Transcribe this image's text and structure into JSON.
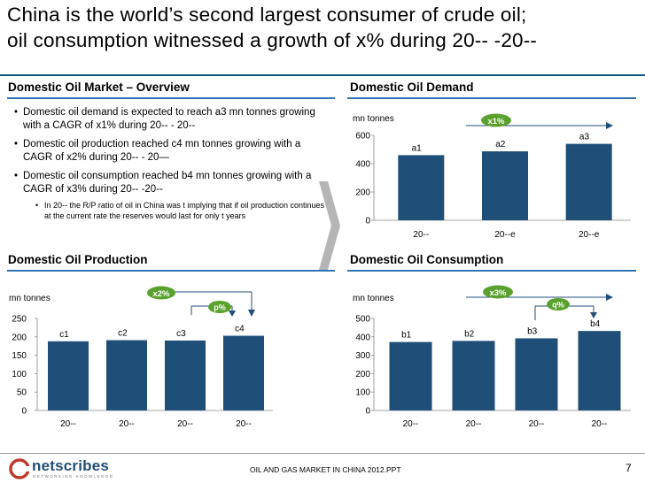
{
  "title": {
    "line1": "China is the world’s second largest consumer of crude oil;",
    "line2": "oil consumption witnessed a growth of x% during 20-- -20--"
  },
  "overview": {
    "heading": "Domestic Oil Market – Overview",
    "bullets": [
      "Domestic oil demand is expected to reach a3 mn tonnes growing with a CAGR of x1% during 20-- - 20--",
      "Domestic oil production reached c4 mn tonnes growing with a CAGR of x2% during 20-- - 20—",
      "Domestic oil consumption reached b4 mn tonnes growing with a CAGR of x3% during 20-- -20--"
    ],
    "sub_bullet": "In 20-- the R/P ratio of oil in China was t implying that if oil production continues at the current rate the reserves would last for only t years"
  },
  "demand": {
    "heading": "Domestic Oil Demand",
    "unit": "mn tonnes",
    "growth_badge": "x1%"
  },
  "production": {
    "heading": "Domestic Oil Production",
    "unit": "mn tonnes",
    "growth_badge": "x2%",
    "growth_badge2": "p%"
  },
  "consumption": {
    "heading": "Domestic Oil Consumption",
    "unit": "mn tonnes",
    "growth_badge": "x3%",
    "growth_badge2": "q%"
  },
  "footer": {
    "logo_name": "netscribes",
    "logo_tagline": "NETWORKING KNOWLEDGE",
    "document_title": "OIL AND GAS MARKET IN CHINA 2012.PPT",
    "page_number": "7"
  },
  "colors": {
    "bar": "#1f4e79",
    "badge": "#5aa02c",
    "heading_rule": "#2e75b6"
  },
  "chart_data": [
    {
      "id": "demand",
      "type": "bar",
      "categories": [
        "20--",
        "20--e",
        "20--e"
      ],
      "values": [
        460,
        487,
        540
      ],
      "labels": [
        "a1",
        "a2",
        "a3"
      ],
      "ylim": [
        0,
        600
      ],
      "yticks": [
        0,
        200,
        400,
        600
      ],
      "ylabel": "mn tonnes"
    },
    {
      "id": "production",
      "type": "bar",
      "categories": [
        "20--",
        "20--",
        "20--",
        "20--"
      ],
      "values": [
        188,
        191,
        190,
        203
      ],
      "labels": [
        "c1",
        "c2",
        "c3",
        "c4"
      ],
      "ylim": [
        0,
        250
      ],
      "yticks": [
        0,
        50,
        100,
        150,
        200,
        250
      ],
      "ylabel": "mn tonnes"
    },
    {
      "id": "consumption",
      "type": "bar",
      "categories": [
        "20--",
        "20--",
        "20--",
        "20--"
      ],
      "values": [
        372,
        378,
        392,
        432
      ],
      "labels": [
        "b1",
        "b2",
        "b3",
        "b4"
      ],
      "ylim": [
        0,
        500
      ],
      "yticks": [
        0,
        100,
        200,
        300,
        400,
        500
      ],
      "ylabel": "mn tonnes"
    }
  ]
}
